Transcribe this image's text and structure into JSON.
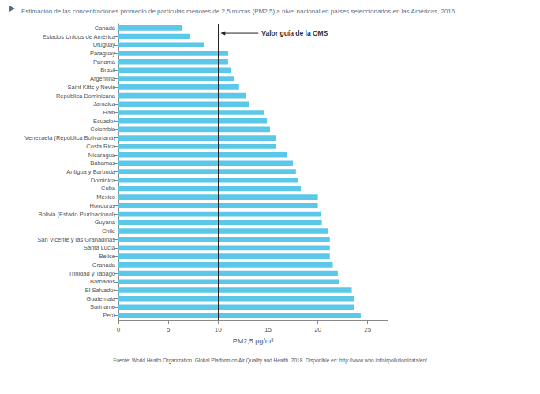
{
  "chart_data": {
    "type": "bar",
    "orientation": "horizontal",
    "title": "Estimación de las concentraciones promedio de partículas menores de 2,5 micras (PM2,5) a nivel nacional en países seleccionados en las Américas, 2016",
    "source": "Fuente: World Health Organization. Global Platform on Air Quality and Health. 2018. Disponible en: http://www.who.int/airpollution/data/en/",
    "xlabel": "PM2,5 µg/m³",
    "categories": [
      "Canadá",
      "Estados Unidos de América",
      "Uruguay",
      "Paraguay",
      "Panamá",
      "Brasil",
      "Argentina",
      "Saint Kitts y Nevis",
      "República Dominicana",
      "Jamaica",
      "Haití",
      "Ecuador",
      "Colombia",
      "Venezuela (República Bolivariana)",
      "Costa Rica",
      "Nicaragua",
      "Bahamas",
      "Antigua y Barbuda",
      "Dominica",
      "Cuba",
      "México",
      "Honduras",
      "Bolivia (Estado Plurinacional)",
      "Guyana",
      "Chile",
      "San Vicente y las Granadinas",
      "Santa Lucía",
      "Belice",
      "Granada",
      "Trinidad y Tabago",
      "Barbados",
      "El Salvador",
      "Guatemala",
      "Suriname",
      "Perú"
    ],
    "values": [
      6.4,
      7.2,
      8.6,
      11.0,
      11.0,
      11.3,
      11.6,
      12.1,
      12.8,
      13.1,
      14.6,
      14.9,
      15.2,
      15.8,
      15.8,
      16.9,
      17.5,
      17.8,
      18.0,
      18.3,
      20.0,
      20.0,
      20.3,
      20.4,
      21.0,
      21.2,
      21.2,
      21.2,
      21.5,
      22.0,
      22.1,
      23.4,
      23.6,
      23.6,
      24.3
    ],
    "color": "#5bc8ea",
    "xlim": [
      0,
      27
    ],
    "xticks": [
      0,
      5,
      10,
      15,
      20,
      25
    ],
    "grid": false,
    "annotations": [
      {
        "x": 10,
        "text": "Valor guía de la OMS"
      }
    ]
  }
}
